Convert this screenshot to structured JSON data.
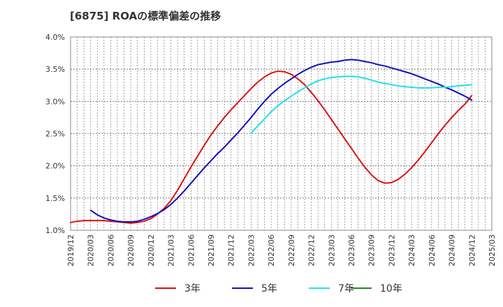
{
  "chart_data": {
    "type": "line",
    "title": "[6875]  ROAの標準偏差の推移",
    "xlabel": "",
    "ylabel": "",
    "ylim": [
      1.0,
      4.0
    ],
    "yticks": [
      "1.0%",
      "1.5%",
      "2.0%",
      "2.5%",
      "3.0%",
      "3.5%",
      "4.0%"
    ],
    "xticks": [
      "2019/12",
      "2020/03",
      "2020/06",
      "2020/09",
      "2020/12",
      "2021/03",
      "2021/06",
      "2021/09",
      "2021/12",
      "2022/03",
      "2022/06",
      "2022/09",
      "2022/12",
      "2023/03",
      "2023/06",
      "2023/09",
      "2023/12",
      "2024/03",
      "2024/06",
      "2024/09",
      "2024/12",
      "2025/03"
    ],
    "grid": true,
    "legend_position": "bottom",
    "series": [
      {
        "name": "3年",
        "color": "#dd1111",
        "points": [
          [
            "2019/12",
            1.12
          ],
          [
            "2020/01",
            1.14
          ],
          [
            "2020/02",
            1.15
          ],
          [
            "2020/03",
            1.15
          ],
          [
            "2020/04",
            1.15
          ],
          [
            "2020/05",
            1.15
          ],
          [
            "2020/06",
            1.14
          ],
          [
            "2020/07",
            1.13
          ],
          [
            "2020/08",
            1.12
          ],
          [
            "2020/09",
            1.11
          ],
          [
            "2020/10",
            1.12
          ],
          [
            "2020/11",
            1.14
          ],
          [
            "2020/12",
            1.18
          ],
          [
            "2021/01",
            1.25
          ],
          [
            "2021/02",
            1.34
          ],
          [
            "2021/03",
            1.46
          ],
          [
            "2021/04",
            1.62
          ],
          [
            "2021/05",
            1.8
          ],
          [
            "2021/06",
            1.98
          ],
          [
            "2021/07",
            2.15
          ],
          [
            "2021/08",
            2.32
          ],
          [
            "2021/09",
            2.48
          ],
          [
            "2021/10",
            2.62
          ],
          [
            "2021/11",
            2.75
          ],
          [
            "2021/12",
            2.87
          ],
          [
            "2022/01",
            2.98
          ],
          [
            "2022/02",
            3.09
          ],
          [
            "2022/03",
            3.2
          ],
          [
            "2022/04",
            3.3
          ],
          [
            "2022/05",
            3.38
          ],
          [
            "2022/06",
            3.44
          ],
          [
            "2022/07",
            3.47
          ],
          [
            "2022/08",
            3.46
          ],
          [
            "2022/09",
            3.42
          ],
          [
            "2022/10",
            3.35
          ],
          [
            "2022/11",
            3.26
          ],
          [
            "2022/12",
            3.14
          ],
          [
            "2023/01",
            3.01
          ],
          [
            "2023/02",
            2.87
          ],
          [
            "2023/03",
            2.72
          ],
          [
            "2023/04",
            2.57
          ],
          [
            "2023/05",
            2.42
          ],
          [
            "2023/06",
            2.27
          ],
          [
            "2023/07",
            2.12
          ],
          [
            "2023/08",
            1.98
          ],
          [
            "2023/09",
            1.86
          ],
          [
            "2023/10",
            1.77
          ],
          [
            "2023/11",
            1.73
          ],
          [
            "2023/12",
            1.74
          ],
          [
            "2024/01",
            1.79
          ],
          [
            "2024/02",
            1.87
          ],
          [
            "2024/03",
            1.97
          ],
          [
            "2024/04",
            2.09
          ],
          [
            "2024/05",
            2.22
          ],
          [
            "2024/06",
            2.36
          ],
          [
            "2024/07",
            2.5
          ],
          [
            "2024/08",
            2.63
          ],
          [
            "2024/09",
            2.75
          ],
          [
            "2024/10",
            2.86
          ],
          [
            "2024/11",
            2.96
          ],
          [
            "2024/12",
            3.09
          ]
        ]
      },
      {
        "name": "5年",
        "color": "#1111bb",
        "points": [
          [
            "2020/03",
            1.31
          ],
          [
            "2020/04",
            1.24
          ],
          [
            "2020/05",
            1.19
          ],
          [
            "2020/06",
            1.16
          ],
          [
            "2020/07",
            1.14
          ],
          [
            "2020/08",
            1.13
          ],
          [
            "2020/09",
            1.13
          ],
          [
            "2020/10",
            1.14
          ],
          [
            "2020/11",
            1.17
          ],
          [
            "2020/12",
            1.21
          ],
          [
            "2021/01",
            1.26
          ],
          [
            "2021/02",
            1.32
          ],
          [
            "2021/03",
            1.4
          ],
          [
            "2021/04",
            1.5
          ],
          [
            "2021/05",
            1.61
          ],
          [
            "2021/06",
            1.73
          ],
          [
            "2021/07",
            1.85
          ],
          [
            "2021/08",
            1.97
          ],
          [
            "2021/09",
            2.08
          ],
          [
            "2021/10",
            2.19
          ],
          [
            "2021/11",
            2.29
          ],
          [
            "2021/12",
            2.4
          ],
          [
            "2022/01",
            2.51
          ],
          [
            "2022/02",
            2.63
          ],
          [
            "2022/03",
            2.75
          ],
          [
            "2022/04",
            2.88
          ],
          [
            "2022/05",
            3.0
          ],
          [
            "2022/06",
            3.11
          ],
          [
            "2022/07",
            3.2
          ],
          [
            "2022/08",
            3.28
          ],
          [
            "2022/09",
            3.35
          ],
          [
            "2022/10",
            3.42
          ],
          [
            "2022/11",
            3.48
          ],
          [
            "2022/12",
            3.53
          ],
          [
            "2023/01",
            3.57
          ],
          [
            "2023/02",
            3.59
          ],
          [
            "2023/03",
            3.61
          ],
          [
            "2023/04",
            3.62
          ],
          [
            "2023/05",
            3.64
          ],
          [
            "2023/06",
            3.65
          ],
          [
            "2023/07",
            3.64
          ],
          [
            "2023/08",
            3.62
          ],
          [
            "2023/09",
            3.6
          ],
          [
            "2023/10",
            3.57
          ],
          [
            "2023/11",
            3.55
          ],
          [
            "2023/12",
            3.52
          ],
          [
            "2024/01",
            3.49
          ],
          [
            "2024/02",
            3.46
          ],
          [
            "2024/03",
            3.43
          ],
          [
            "2024/04",
            3.39
          ],
          [
            "2024/05",
            3.35
          ],
          [
            "2024/06",
            3.31
          ],
          [
            "2024/07",
            3.27
          ],
          [
            "2024/08",
            3.22
          ],
          [
            "2024/09",
            3.18
          ],
          [
            "2024/10",
            3.13
          ],
          [
            "2024/11",
            3.08
          ],
          [
            "2024/12",
            3.02
          ]
        ]
      },
      {
        "name": "7年",
        "color": "#22e0e8",
        "points": [
          [
            "2022/03",
            2.51
          ],
          [
            "2022/04",
            2.62
          ],
          [
            "2022/05",
            2.73
          ],
          [
            "2022/06",
            2.84
          ],
          [
            "2022/07",
            2.93
          ],
          [
            "2022/08",
            3.01
          ],
          [
            "2022/09",
            3.08
          ],
          [
            "2022/10",
            3.15
          ],
          [
            "2022/11",
            3.21
          ],
          [
            "2022/12",
            3.27
          ],
          [
            "2023/01",
            3.32
          ],
          [
            "2023/02",
            3.35
          ],
          [
            "2023/03",
            3.37
          ],
          [
            "2023/04",
            3.38
          ],
          [
            "2023/05",
            3.39
          ],
          [
            "2023/06",
            3.39
          ],
          [
            "2023/07",
            3.38
          ],
          [
            "2023/08",
            3.36
          ],
          [
            "2023/09",
            3.33
          ],
          [
            "2023/10",
            3.3
          ],
          [
            "2023/11",
            3.28
          ],
          [
            "2023/12",
            3.26
          ],
          [
            "2024/01",
            3.24
          ],
          [
            "2024/02",
            3.23
          ],
          [
            "2024/03",
            3.22
          ],
          [
            "2024/04",
            3.21
          ],
          [
            "2024/05",
            3.21
          ],
          [
            "2024/06",
            3.21
          ],
          [
            "2024/07",
            3.22
          ],
          [
            "2024/08",
            3.22
          ],
          [
            "2024/09",
            3.23
          ],
          [
            "2024/10",
            3.24
          ],
          [
            "2024/11",
            3.25
          ],
          [
            "2024/12",
            3.26
          ]
        ]
      },
      {
        "name": "10年",
        "color": "#228822",
        "points": []
      }
    ]
  }
}
